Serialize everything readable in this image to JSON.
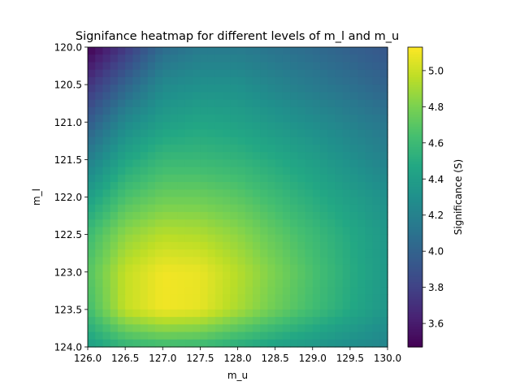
{
  "chart_data": {
    "type": "heatmap",
    "title": "Signifance heatmap for different levels of m_l and m_u",
    "xlabel": "m_u",
    "ylabel": "m_l",
    "xlim": [
      126.0,
      130.0
    ],
    "ylim": [
      120.0,
      124.0
    ],
    "y_inverted": true,
    "xticks": [
      "126.0",
      "126.5",
      "127.0",
      "127.5",
      "128.0",
      "128.5",
      "129.0",
      "129.5",
      "130.0"
    ],
    "yticks": [
      "120.0",
      "120.5",
      "121.0",
      "121.5",
      "122.0",
      "122.5",
      "123.0",
      "123.5",
      "124.0"
    ],
    "colormap": "viridis",
    "colorbar": {
      "label": "Significance (S)",
      "range": [
        3.47,
        5.13
      ],
      "ticks": [
        "3.6",
        "3.8",
        "4.0",
        "4.2",
        "4.4",
        "4.6",
        "4.8",
        "5.0"
      ]
    },
    "x": [
      126.0,
      126.5,
      127.0,
      127.5,
      128.0,
      128.5,
      129.0,
      129.5,
      130.0
    ],
    "y": [
      120.0,
      120.5,
      121.0,
      121.5,
      122.0,
      122.5,
      123.0,
      123.5,
      124.0
    ],
    "z": [
      [
        3.47,
        3.75,
        4.05,
        4.15,
        4.15,
        4.1,
        4.05,
        3.98,
        3.92
      ],
      [
        3.72,
        4.0,
        4.25,
        4.3,
        4.3,
        4.22,
        4.15,
        4.08,
        4.0
      ],
      [
        3.95,
        4.25,
        4.4,
        4.45,
        4.42,
        4.35,
        4.28,
        4.2,
        4.12
      ],
      [
        4.18,
        4.45,
        4.58,
        4.58,
        4.55,
        4.48,
        4.4,
        4.3,
        4.2
      ],
      [
        4.4,
        4.65,
        4.75,
        4.75,
        4.7,
        4.6,
        4.5,
        4.4,
        4.3
      ],
      [
        4.6,
        4.85,
        4.95,
        4.93,
        4.85,
        4.72,
        4.6,
        4.48,
        4.35
      ],
      [
        4.68,
        4.98,
        5.1,
        5.08,
        4.95,
        4.8,
        4.65,
        4.5,
        4.36
      ],
      [
        4.62,
        4.98,
        5.1,
        5.07,
        4.92,
        4.76,
        4.62,
        4.48,
        4.34
      ],
      [
        4.4,
        4.55,
        4.6,
        4.58,
        4.5,
        4.42,
        4.35,
        4.28,
        4.22
      ]
    ]
  }
}
